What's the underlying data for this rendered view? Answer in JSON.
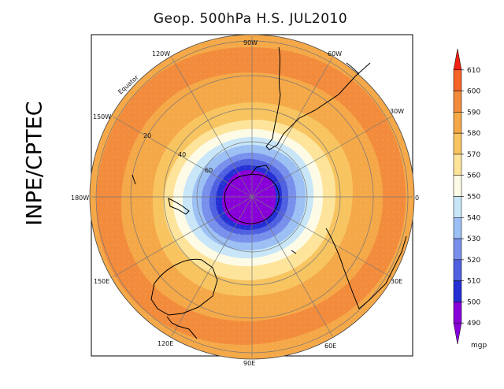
{
  "title": "Geop. 500hPa H.S. JUL2010",
  "side_label": "INPE/CPTEC",
  "map": {
    "projection": "polar-stereographic-south",
    "longitude_labels": [
      "90W",
      "60W",
      "30W",
      "0",
      "30E",
      "60E",
      "90E",
      "120E",
      "150E",
      "180W",
      "150W",
      "120W"
    ],
    "latitude_labels": [
      "Equator",
      "20",
      "40",
      "60"
    ]
  },
  "colorbar": {
    "unit": "mgp",
    "levels": [
      610,
      600,
      590,
      580,
      570,
      560,
      550,
      540,
      530,
      520,
      510,
      500,
      490
    ],
    "colors": [
      "#f02010",
      "#f46428",
      "#f28c3c",
      "#f5a848",
      "#f7c460",
      "#fde49a",
      "#fdfbe6",
      "#c8e6f8",
      "#9cc0f4",
      "#7890ec",
      "#5060e0",
      "#2430d4",
      "#8800d8"
    ],
    "top_color": "#f02010",
    "bottom_color": "#8800d8"
  }
}
